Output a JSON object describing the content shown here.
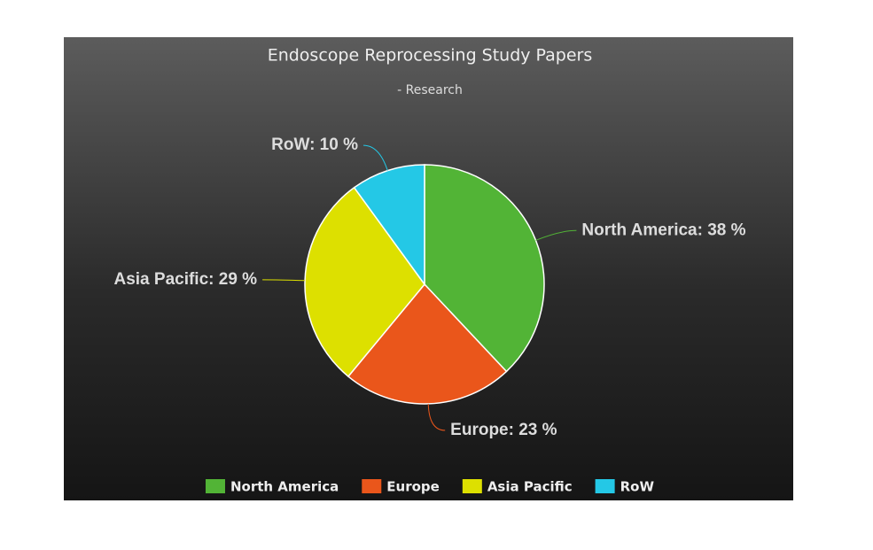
{
  "chart_data": {
    "type": "pie",
    "title": "Endoscope Reprocessing Study Papers",
    "subtitle": "- Research",
    "categories": [
      "North America",
      "Europe",
      "Asia Pacific",
      "RoW"
    ],
    "values": [
      38,
      23,
      29,
      10
    ],
    "value_labels": [
      "North America: 38 %",
      "Europe: 23 %",
      "Asia Pacific: 29 %",
      "RoW: 10 %"
    ],
    "colors": [
      "#52b436",
      "#ea561b",
      "#dde000",
      "#24c8e6"
    ],
    "legend": "bottom"
  }
}
